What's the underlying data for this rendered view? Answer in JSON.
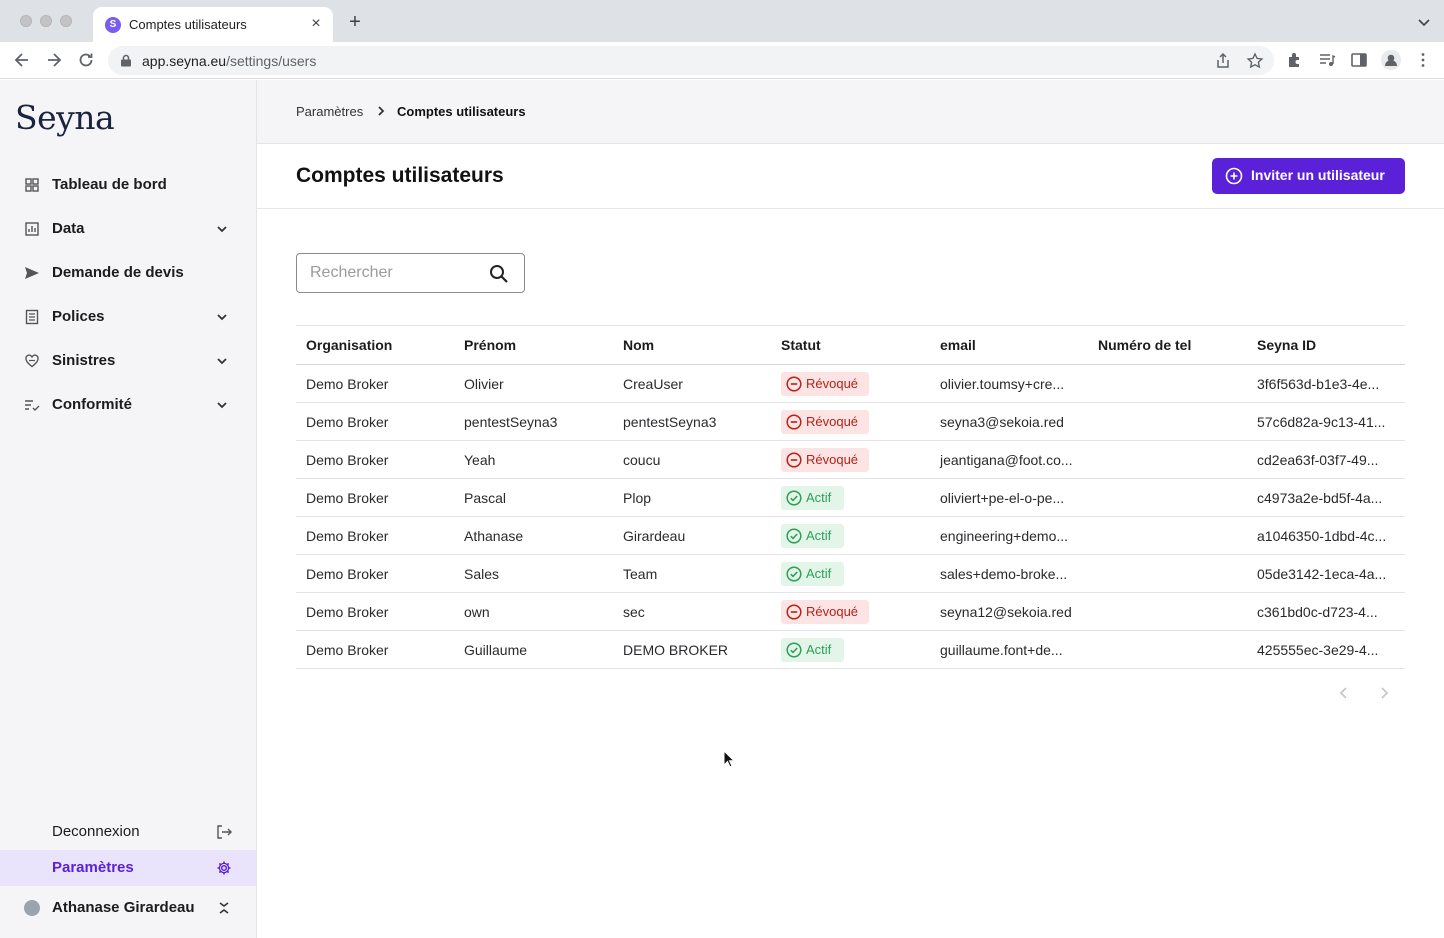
{
  "browser": {
    "tab_title": "Comptes utilisateurs",
    "favicon_letter": "S",
    "url_host": "app.seyna.eu",
    "url_path": "/settings/users"
  },
  "sidebar": {
    "logo": "Seyna",
    "items": [
      {
        "label": "Tableau de bord",
        "icon": "dashboard-icon"
      },
      {
        "label": "Data",
        "icon": "chart-icon",
        "expandable": true
      },
      {
        "label": "Demande de devis",
        "icon": "send-icon"
      },
      {
        "label": "Polices",
        "icon": "document-icon",
        "expandable": true
      },
      {
        "label": "Sinistres",
        "icon": "heart-hand-icon",
        "expandable": true
      },
      {
        "label": "Conformité",
        "icon": "checklist-icon",
        "expandable": true
      }
    ],
    "logout_label": "Deconnexion",
    "settings_label": "Paramètres",
    "user_name": "Athanase Girardeau"
  },
  "breadcrumb": {
    "parent": "Paramètres",
    "current": "Comptes utilisateurs"
  },
  "page": {
    "title": "Comptes utilisateurs",
    "invite_label": "Inviter un utilisateur",
    "search_placeholder": "Rechercher"
  },
  "table": {
    "columns": [
      "Organisation",
      "Prénom",
      "Nom",
      "Statut",
      "email",
      "Numéro de tel",
      "Seyna ID"
    ],
    "rows": [
      {
        "org": "Demo Broker",
        "first": "Olivier",
        "last": "CreaUser",
        "status": "Révoqué",
        "email": "olivier.toumsy+cre...",
        "phone": "",
        "id": "3f6f563d-b1e3-4e..."
      },
      {
        "org": "Demo Broker",
        "first": "pentestSeyna3",
        "last": "pentestSeyna3",
        "status": "Révoqué",
        "email": "seyna3@sekoia.red",
        "phone": "",
        "id": "57c6d82a-9c13-41..."
      },
      {
        "org": "Demo Broker",
        "first": "Yeah",
        "last": "coucu",
        "status": "Révoqué",
        "email": "jeantigana@foot.co...",
        "phone": "",
        "id": "cd2ea63f-03f7-49..."
      },
      {
        "org": "Demo Broker",
        "first": "Pascal",
        "last": "Plop",
        "status": "Actif",
        "email": "oliviert+pe-el-o-pe...",
        "phone": "",
        "id": "c4973a2e-bd5f-4a..."
      },
      {
        "org": "Demo Broker",
        "first": "Athanase",
        "last": "Girardeau",
        "status": "Actif",
        "email": "engineering+demo...",
        "phone": "",
        "id": "a1046350-1dbd-4c..."
      },
      {
        "org": "Demo Broker",
        "first": "Sales",
        "last": "Team",
        "status": "Actif",
        "email": "sales+demo-broke...",
        "phone": "",
        "id": "05de3142-1eca-4a..."
      },
      {
        "org": "Demo Broker",
        "first": "own",
        "last": "sec",
        "status": "Révoqué",
        "email": "seyna12@sekoia.red",
        "phone": "",
        "id": "c361bd0c-d723-4..."
      },
      {
        "org": "Demo Broker",
        "first": "Guillaume",
        "last": "DEMO BROKER",
        "status": "Actif",
        "email": "guillaume.font+de...",
        "phone": "",
        "id": "425555ec-3e29-4..."
      }
    ]
  },
  "colors": {
    "accent": "#5b21d9",
    "revoked_bg": "#fde4e4",
    "revoked_text": "#b42318",
    "active_bg": "#e3f5e9",
    "active_text": "#2f9e57"
  }
}
